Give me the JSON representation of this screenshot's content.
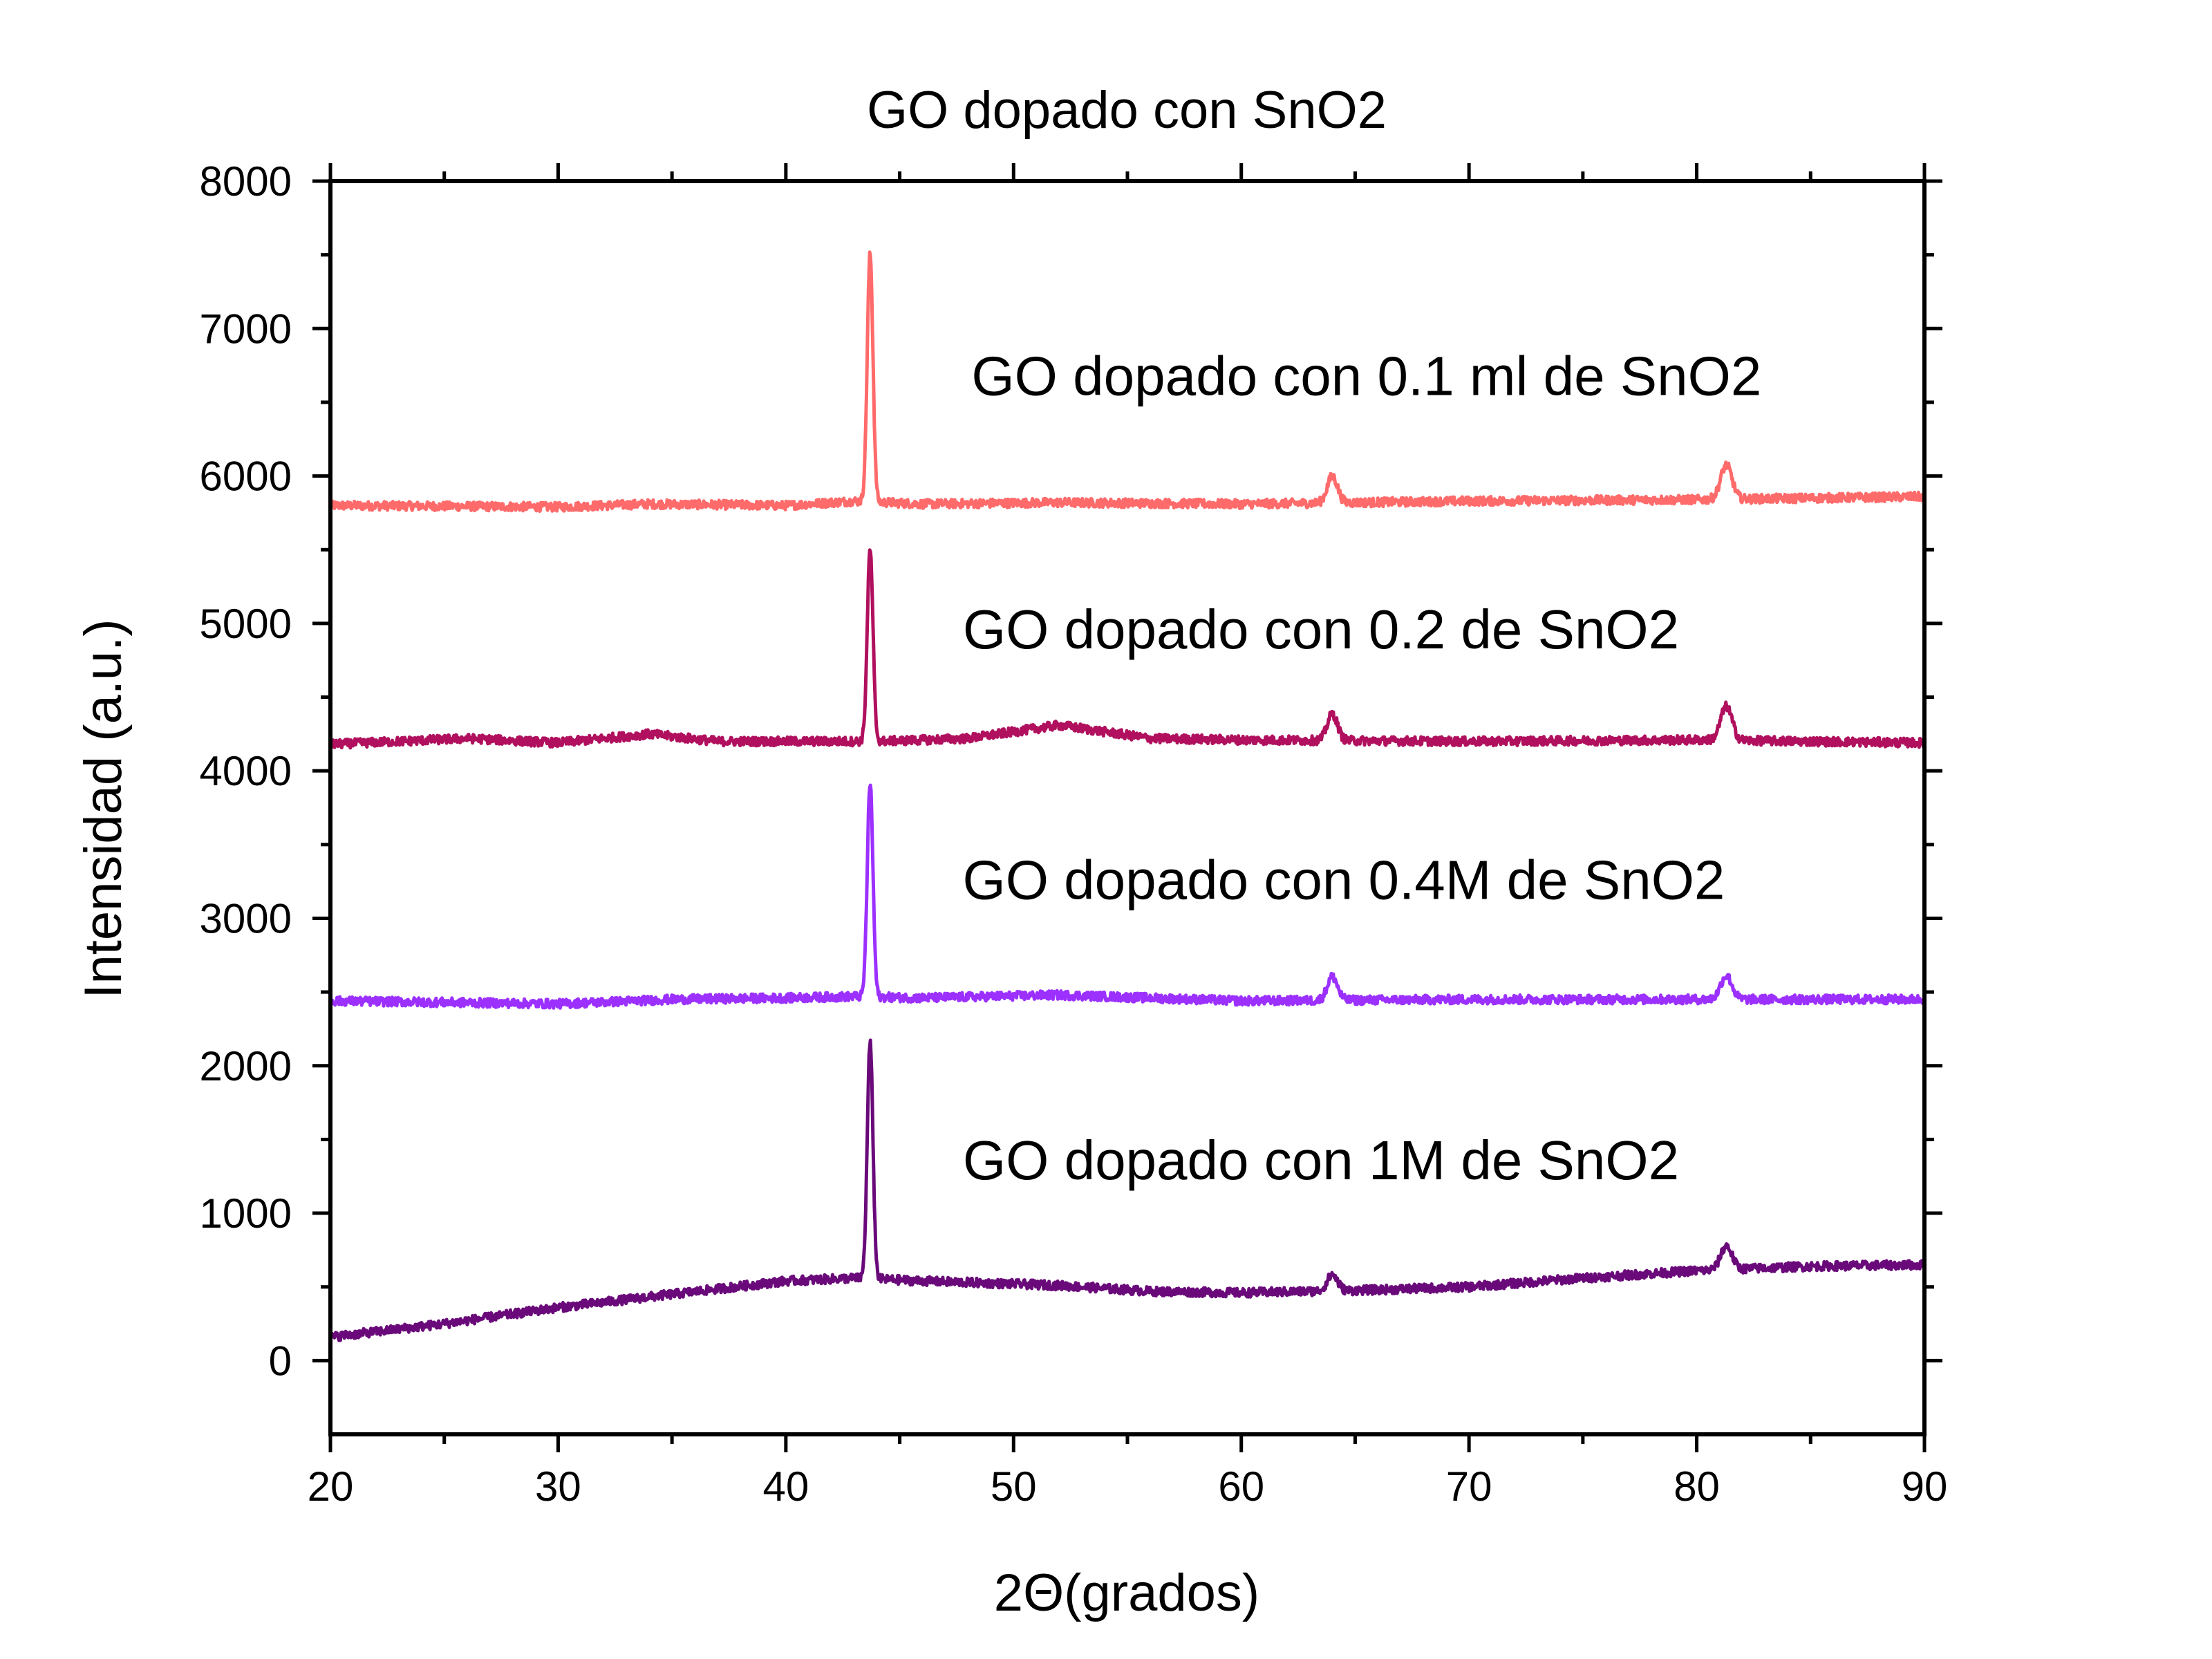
{
  "chart_data": {
    "type": "line",
    "title": "GO dopado con SnO2",
    "xlabel": "2Θ(grados)",
    "ylabel": "Intensidad (a.u.)",
    "xlim": [
      20,
      90
    ],
    "ylim": [
      -500,
      8000
    ],
    "xticks": [
      20,
      30,
      40,
      50,
      60,
      70,
      80,
      90
    ],
    "yticks": [
      0,
      1000,
      2000,
      3000,
      4000,
      5000,
      6000,
      7000,
      8000
    ],
    "grid": false,
    "legend": "none",
    "series": [
      {
        "label": "GO dopado con 0.1 ml de SnO2",
        "color": "#ff6a6a",
        "baseline": [
          [
            20,
            5800
          ],
          [
            30,
            5790
          ],
          [
            34,
            5810
          ],
          [
            40,
            5800
          ],
          [
            43,
            5830
          ],
          [
            46,
            5810
          ],
          [
            52,
            5820
          ],
          [
            60,
            5810
          ],
          [
            70,
            5830
          ],
          [
            80,
            5840
          ],
          [
            90,
            5860
          ]
        ],
        "peaks": [
          [
            43.7,
            1680,
            0.25
          ],
          [
            64.0,
            180,
            0.45
          ],
          [
            81.3,
            230,
            0.5
          ]
        ]
      },
      {
        "label": "GO dopado con 0.2 de SnO2",
        "color": "#b0105e",
        "baseline": [
          [
            20,
            4180
          ],
          [
            26,
            4220
          ],
          [
            30,
            4190
          ],
          [
            34,
            4250
          ],
          [
            37,
            4200
          ],
          [
            44,
            4200
          ],
          [
            48,
            4220
          ],
          [
            52,
            4310
          ],
          [
            56,
            4220
          ],
          [
            60,
            4210
          ],
          [
            70,
            4200
          ],
          [
            80,
            4210
          ],
          [
            90,
            4190
          ]
        ],
        "peaks": [
          [
            43.7,
            1300,
            0.25
          ],
          [
            64.0,
            180,
            0.45
          ],
          [
            81.3,
            230,
            0.5
          ]
        ]
      },
      {
        "label": "GO dopado con  0.4M de SnO2",
        "color": "#9b30ff",
        "baseline": [
          [
            20,
            2440
          ],
          [
            30,
            2420
          ],
          [
            35,
            2450
          ],
          [
            40,
            2460
          ],
          [
            43,
            2470
          ],
          [
            46,
            2460
          ],
          [
            52,
            2480
          ],
          [
            60,
            2440
          ],
          [
            70,
            2450
          ],
          [
            80,
            2450
          ],
          [
            90,
            2450
          ]
        ],
        "peaks": [
          [
            43.7,
            1450,
            0.25
          ],
          [
            64.0,
            160,
            0.45
          ],
          [
            81.3,
            160,
            0.5
          ]
        ]
      },
      {
        "label": "GO dopado con 1M de SnO2",
        "color": "#6a0a7a",
        "baseline": [
          [
            20,
            160
          ],
          [
            25,
            250
          ],
          [
            30,
            360
          ],
          [
            35,
            450
          ],
          [
            40,
            540
          ],
          [
            43,
            560
          ],
          [
            46,
            540
          ],
          [
            52,
            510
          ],
          [
            56,
            470
          ],
          [
            60,
            460
          ],
          [
            63,
            470
          ],
          [
            66,
            480
          ],
          [
            70,
            500
          ],
          [
            75,
            560
          ],
          [
            80,
            610
          ],
          [
            85,
            640
          ],
          [
            90,
            650
          ]
        ],
        "peaks": [
          [
            43.7,
            1600,
            0.25
          ],
          [
            64.0,
            110,
            0.45
          ],
          [
            81.3,
            160,
            0.5
          ]
        ]
      }
    ],
    "annotations": [
      {
        "text": "GO dopado con 0.1 ml de SnO2",
        "x": 65.5,
        "y": 6550
      },
      {
        "text": "GO dopado con 0.2 de SnO2",
        "x": 63.5,
        "y": 4830
      },
      {
        "text": "GO dopado con  0.4M de SnO2",
        "x": 64.5,
        "y": 3130
      },
      {
        "text": "GO dopado con 1M de SnO2",
        "x": 63.5,
        "y": 1230
      }
    ]
  }
}
